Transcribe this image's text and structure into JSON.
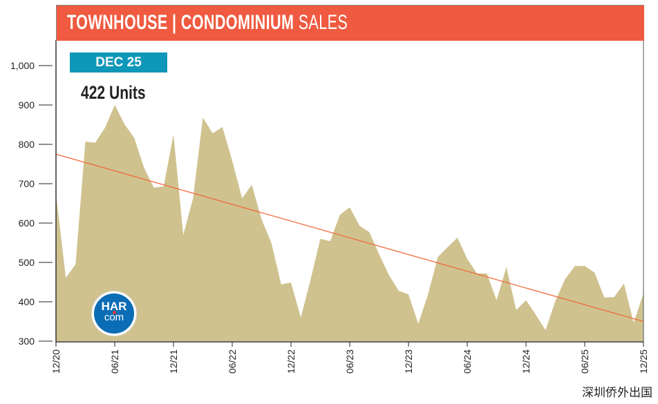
{
  "header": {
    "title_bold": "TOWNHOUSE | CONDOMINIUM",
    "title_light": "SALES",
    "color": "#EF5A40"
  },
  "badge": {
    "label": "DEC 25",
    "color": "#0E97B8"
  },
  "current_value_label": "422 Units",
  "logo": {
    "text_top": "HAR",
    "text_bottom": "com"
  },
  "watermark": "深圳侨外出国",
  "chart_data": {
    "type": "area",
    "title": "TOWNHOUSE | CONDOMINIUM SALES",
    "ylim": [
      300,
      1000
    ],
    "y_ticks": [
      300,
      400,
      500,
      600,
      700,
      800,
      900,
      1000
    ],
    "y_tick_labels": [
      "300",
      "400",
      "500",
      "600",
      "700",
      "800",
      "900",
      "1,000"
    ],
    "x_tick_labels": [
      "12/20",
      "06/21",
      "12/21",
      "06/22",
      "12/22",
      "06/23",
      "12/23",
      "06/24",
      "12/24",
      "06/25",
      "12/25"
    ],
    "x": [
      "12/20",
      "01/21",
      "02/21",
      "03/21",
      "04/21",
      "05/21",
      "06/21",
      "07/21",
      "08/21",
      "09/21",
      "10/21",
      "11/21",
      "12/21",
      "01/22",
      "02/22",
      "03/22",
      "04/22",
      "05/22",
      "06/22",
      "07/22",
      "08/22",
      "09/22",
      "10/22",
      "11/22",
      "12/22",
      "01/23",
      "02/23",
      "03/23",
      "04/23",
      "05/23",
      "06/23",
      "07/23",
      "08/23",
      "09/23",
      "10/23",
      "11/23",
      "12/23",
      "01/24",
      "02/24",
      "03/24",
      "04/24",
      "05/24",
      "06/24",
      "07/24",
      "08/24",
      "09/24",
      "10/24",
      "11/24",
      "12/24",
      "01/25",
      "02/25",
      "03/25",
      "04/25",
      "05/25",
      "06/25",
      "07/25",
      "08/25",
      "09/25",
      "10/25",
      "11/25",
      "12/25"
    ],
    "series": [
      {
        "values": [
          675,
          461,
          495,
          807,
          804,
          842,
          900,
          851,
          816,
          740,
          690,
          693,
          825,
          570,
          663,
          868,
          828,
          844,
          758,
          663,
          697,
          609,
          549,
          444,
          449,
          360,
          456,
          560,
          554,
          621,
          640,
          593,
          577,
          521,
          468,
          428,
          419,
          344,
          419,
          514,
          539,
          563,
          509,
          472,
          472,
          404,
          488,
          379,
          404,
          367,
          328,
          402,
          458,
          491,
          491,
          474,
          411,
          412,
          446,
          347,
          422
        ],
        "color": "#CFC28F"
      }
    ],
    "trendline": {
      "start": 775,
      "end": 350,
      "color": "#F26A3A"
    },
    "grid": false
  }
}
